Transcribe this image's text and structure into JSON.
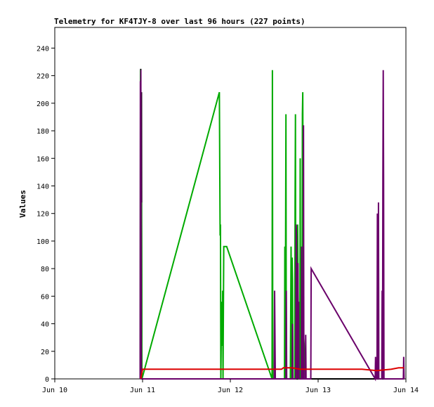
{
  "chart_data": {
    "type": "line",
    "title": "Telemetry for KF4TJY-8 over last 96 hours (227 points)",
    "xlabel": "",
    "ylabel": "Values",
    "xlim": [
      "Jun 10",
      "Jun 14"
    ],
    "ylim": [
      0,
      255
    ],
    "x_ticks": [
      "Jun 10",
      "Jun 11",
      "Jun 12",
      "Jun 13",
      "Jun 14"
    ],
    "y_ticks": [
      0,
      20,
      40,
      60,
      80,
      100,
      120,
      140,
      160,
      180,
      200,
      220,
      240
    ],
    "grid": false,
    "legend": "none",
    "series": [
      {
        "color": "#000000",
        "points": [
          [
            "Jun 10 23:24",
            0
          ],
          [
            "Jun 10 23:30",
            225
          ],
          [
            "Jun 10 23:36",
            0
          ],
          [
            "Jun 10 23:42",
            208
          ],
          [
            "Jun 10 23:48",
            0
          ],
          [
            "Jun 10 23:54",
            0
          ],
          [
            "Jun 12 12:00",
            0
          ],
          [
            "Jun 13 12:00",
            0
          ],
          [
            "Jun 13 23:30",
            0
          ]
        ]
      },
      {
        "color": "#00aa00",
        "points": [
          [
            "Jun 10 23:22",
            0
          ],
          [
            "Jun 10 23:26",
            224
          ],
          [
            "Jun 10 23:30",
            0
          ],
          [
            "Jun 10 23:34",
            97
          ],
          [
            "Jun 10 23:38",
            0
          ],
          [
            "Jun 10 23:42",
            128
          ],
          [
            "Jun 10 23:50",
            0
          ],
          [
            "Jun 11 21:00",
            208
          ],
          [
            "Jun 11 21:12",
            104
          ],
          [
            "Jun 11 21:18",
            112
          ],
          [
            "Jun 11 21:24",
            0
          ],
          [
            "Jun 11 21:36",
            56
          ],
          [
            "Jun 11 21:48",
            24
          ],
          [
            "Jun 11 21:54",
            64
          ],
          [
            "Jun 11 22:00",
            0
          ],
          [
            "Jun 11 22:12",
            96
          ],
          [
            "Jun 11 23:00",
            96
          ],
          [
            "Jun 12 11:24",
            0
          ],
          [
            "Jun 12 11:30",
            224
          ],
          [
            "Jun 12 11:36",
            0
          ],
          [
            "Jun 12 14:48",
            0
          ],
          [
            "Jun 12 14:54",
            96
          ],
          [
            "Jun 12 15:00",
            0
          ],
          [
            "Jun 12 15:12",
            192
          ],
          [
            "Jun 12 15:18",
            0
          ],
          [
            "Jun 12 16:24",
            0
          ],
          [
            "Jun 12 16:36",
            96
          ],
          [
            "Jun 12 16:48",
            0
          ],
          [
            "Jun 12 16:54",
            88
          ],
          [
            "Jun 12 17:00",
            72
          ],
          [
            "Jun 12 17:06",
            0
          ],
          [
            "Jun 12 17:36",
            0
          ],
          [
            "Jun 12 17:42",
            128
          ],
          [
            "Jun 12 17:48",
            192
          ],
          [
            "Jun 12 17:54",
            0
          ],
          [
            "Jun 12 18:24",
            112
          ],
          [
            "Jun 12 18:42",
            0
          ],
          [
            "Jun 12 19:00",
            0
          ],
          [
            "Jun 12 19:06",
            160
          ],
          [
            "Jun 12 19:12",
            0
          ],
          [
            "Jun 12 19:36",
            0
          ],
          [
            "Jun 12 19:42",
            192
          ],
          [
            "Jun 12 19:48",
            208
          ],
          [
            "Jun 12 20:00",
            32
          ],
          [
            "Jun 12 20:24",
            16
          ],
          [
            "Jun 12 20:30",
            0
          ],
          [
            "Jun 12 22:00",
            0
          ]
        ]
      },
      {
        "color": "#6a006a",
        "points": [
          [
            "Jun 10 23:20",
            0
          ],
          [
            "Jun 10 23:24",
            216
          ],
          [
            "Jun 10 23:28",
            0
          ],
          [
            "Jun 10 23:32",
            224
          ],
          [
            "Jun 10 23:36",
            88
          ],
          [
            "Jun 10 23:40",
            0
          ],
          [
            "Jun 12 12:00",
            0
          ],
          [
            "Jun 12 12:06",
            64
          ],
          [
            "Jun 12 12:12",
            32
          ],
          [
            "Jun 12 12:18",
            0
          ],
          [
            "Jun 12 15:12",
            0
          ],
          [
            "Jun 12 15:18",
            64
          ],
          [
            "Jun 12 15:24",
            0
          ],
          [
            "Jun 12 16:54",
            0
          ],
          [
            "Jun 12 17:00",
            40
          ],
          [
            "Jun 12 17:06",
            0
          ],
          [
            "Jun 12 17:54",
            0
          ],
          [
            "Jun 12 18:00",
            112
          ],
          [
            "Jun 12 18:06",
            104
          ],
          [
            "Jun 12 18:12",
            64
          ],
          [
            "Jun 12 18:18",
            0
          ],
          [
            "Jun 12 18:30",
            84
          ],
          [
            "Jun 12 18:36",
            0
          ],
          [
            "Jun 12 18:42",
            56
          ],
          [
            "Jun 12 18:48",
            0
          ],
          [
            "Jun 12 19:24",
            0
          ],
          [
            "Jun 12 19:30",
            96
          ],
          [
            "Jun 12 19:36",
            0
          ],
          [
            "Jun 12 19:54",
            0
          ],
          [
            "Jun 12 20:00",
            184
          ],
          [
            "Jun 12 20:06",
            0
          ],
          [
            "Jun 12 20:30",
            0
          ],
          [
            "Jun 12 20:36",
            32
          ],
          [
            "Jun 12 20:42",
            0
          ],
          [
            "Jun 12 22:00",
            0
          ],
          [
            "Jun 12 22:06",
            80
          ],
          [
            "Jun 13 15:36",
            0
          ],
          [
            "Jun 13 15:42",
            16
          ],
          [
            "Jun 13 15:48",
            0
          ],
          [
            "Jun 13 16:06",
            0
          ],
          [
            "Jun 13 16:12",
            120
          ],
          [
            "Jun 13 16:18",
            0
          ],
          [
            "Jun 13 16:24",
            16
          ],
          [
            "Jun 13 16:30",
            128
          ],
          [
            "Jun 13 16:36",
            0
          ],
          [
            "Jun 13 17:24",
            0
          ],
          [
            "Jun 13 17:30",
            64
          ],
          [
            "Jun 13 17:36",
            0
          ],
          [
            "Jun 13 17:42",
            144
          ],
          [
            "Jun 13 17:48",
            224
          ],
          [
            "Jun 13 17:54",
            144
          ],
          [
            "Jun 13 18:00",
            0
          ],
          [
            "Jun 13 23:18",
            0
          ],
          [
            "Jun 13 23:24",
            16
          ],
          [
            "Jun 13 23:30",
            0
          ]
        ]
      },
      {
        "color": "#dd0000",
        "points": [
          [
            "Jun 10 23:30",
            0
          ],
          [
            "Jun 11 00:00",
            7
          ],
          [
            "Jun 12 14:00",
            7
          ],
          [
            "Jun 12 14:30",
            8
          ],
          [
            "Jun 12 16:00",
            8
          ],
          [
            "Jun 12 17:00",
            8
          ],
          [
            "Jun 12 19:00",
            7
          ],
          [
            "Jun 13 12:00",
            7
          ],
          [
            "Jun 13 16:00",
            6
          ],
          [
            "Jun 13 20:00",
            7
          ],
          [
            "Jun 13 22:00",
            8
          ],
          [
            "Jun 13 23:30",
            8
          ]
        ]
      }
    ]
  }
}
